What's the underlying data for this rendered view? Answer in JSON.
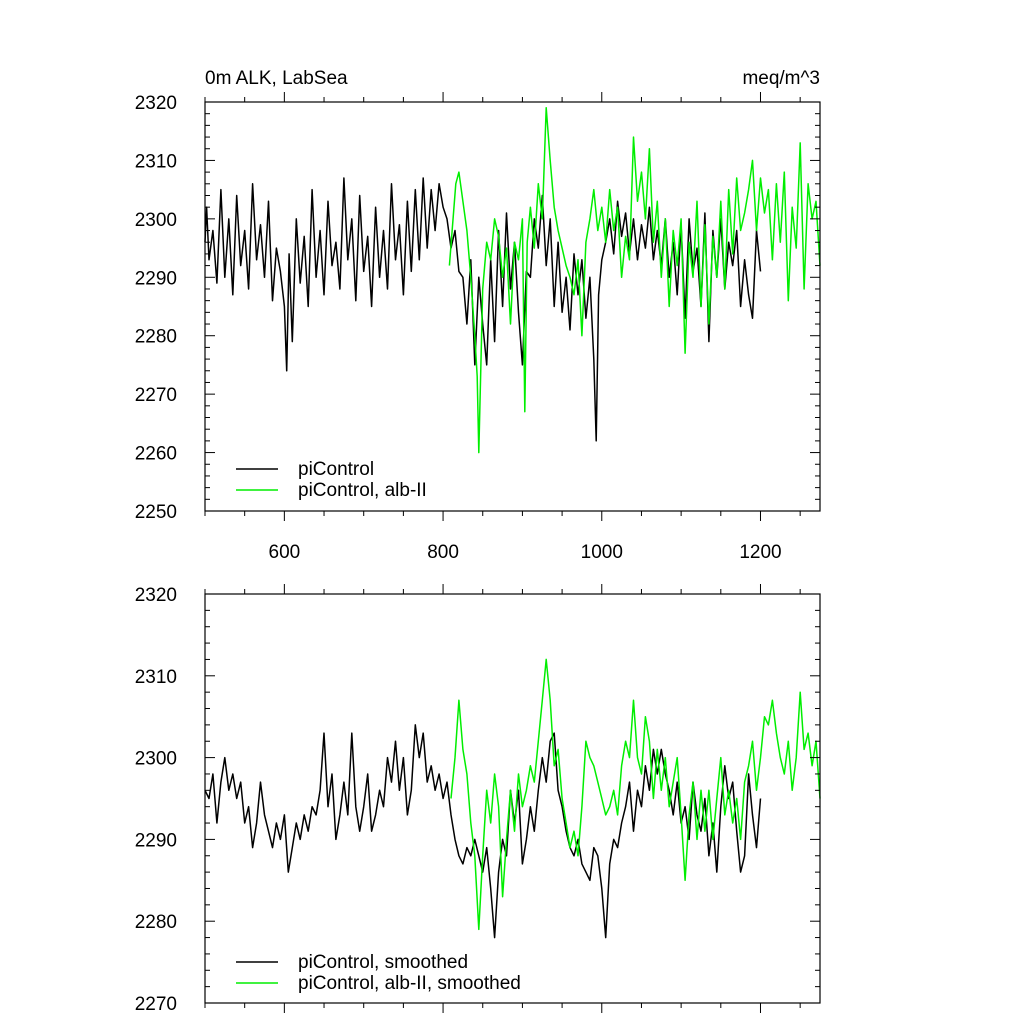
{
  "chart_data": [
    {
      "type": "line",
      "title": "0m ALK, LabSea",
      "units": "meq/m^3",
      "xlim": [
        500,
        1275
      ],
      "ylim": [
        2250,
        2320
      ],
      "xticks": [
        600,
        800,
        1000,
        1200
      ],
      "yticks": [
        2250,
        2260,
        2270,
        2280,
        2290,
        2300,
        2310,
        2320
      ],
      "grid": false,
      "legend_position": "bottom-left",
      "series": [
        {
          "name": "piControl",
          "color": "#000000",
          "x": [
            500,
            502,
            505,
            510,
            515,
            520,
            525,
            530,
            535,
            540,
            545,
            550,
            555,
            560,
            565,
            570,
            575,
            580,
            585,
            590,
            595,
            600,
            603,
            606,
            610,
            615,
            620,
            625,
            630,
            635,
            640,
            645,
            650,
            655,
            660,
            665,
            670,
            675,
            680,
            685,
            690,
            695,
            700,
            705,
            710,
            715,
            720,
            725,
            730,
            735,
            740,
            745,
            750,
            755,
            760,
            765,
            770,
            775,
            780,
            785,
            790,
            795,
            800,
            805,
            810,
            815,
            820,
            825,
            830,
            835,
            840,
            845,
            850,
            855,
            860,
            865,
            870,
            875,
            880,
            885,
            890,
            895,
            900,
            905,
            910,
            915,
            920,
            925,
            930,
            935,
            940,
            945,
            950,
            955,
            960,
            965,
            970,
            975,
            980,
            985,
            990,
            993,
            996,
            1000,
            1005,
            1010,
            1015,
            1020,
            1025,
            1030,
            1035,
            1040,
            1045,
            1050,
            1055,
            1060,
            1065,
            1070,
            1075,
            1080,
            1085,
            1090,
            1095,
            1100,
            1105,
            1110,
            1115,
            1120,
            1125,
            1130,
            1135,
            1140,
            1145,
            1150,
            1155,
            1160,
            1165,
            1170,
            1175,
            1180,
            1185,
            1190,
            1195,
            1200
          ],
          "values": [
            2296,
            2302,
            2293,
            2298,
            2289,
            2305,
            2290,
            2300,
            2287,
            2304,
            2292,
            2298,
            2288,
            2306,
            2293,
            2299,
            2290,
            2303,
            2286,
            2295,
            2291,
            2285,
            2274,
            2294,
            2279,
            2300,
            2289,
            2297,
            2285,
            2305,
            2290,
            2298,
            2287,
            2303,
            2292,
            2296,
            2288,
            2307,
            2293,
            2300,
            2286,
            2304,
            2291,
            2297,
            2285,
            2302,
            2290,
            2298,
            2288,
            2306,
            2293,
            2299,
            2287,
            2303,
            2291,
            2305,
            2293,
            2307,
            2295,
            2305,
            2298,
            2306,
            2302,
            2300,
            2295,
            2298,
            2291,
            2290,
            2282,
            2293,
            2275,
            2290,
            2282,
            2275,
            2293,
            2279,
            2298,
            2285,
            2301,
            2288,
            2296,
            2284,
            2275,
            2291,
            2290,
            2300,
            2295,
            2304,
            2292,
            2300,
            2285,
            2296,
            2284,
            2290,
            2281,
            2294,
            2287,
            2293,
            2283,
            2290,
            2276,
            2262,
            2287,
            2293,
            2296,
            2300,
            2294,
            2303,
            2297,
            2301,
            2294,
            2300,
            2293,
            2299,
            2295,
            2302,
            2293,
            2298,
            2292,
            2300,
            2290,
            2296,
            2287,
            2299,
            2283,
            2300,
            2291,
            2295,
            2285,
            2301,
            2279,
            2298,
            2290,
            2300,
            2288,
            2296,
            2292,
            2298,
            2285,
            2293,
            2287,
            2283,
            2298,
            2291
          ]
        },
        {
          "name": "piControl, alb-II",
          "color": "#00ee00",
          "x": [
            808,
            812,
            816,
            820,
            825,
            830,
            835,
            840,
            843,
            845,
            850,
            855,
            860,
            865,
            870,
            875,
            880,
            885,
            890,
            895,
            900,
            903,
            906,
            910,
            915,
            920,
            925,
            930,
            935,
            940,
            945,
            950,
            955,
            960,
            965,
            970,
            975,
            980,
            985,
            990,
            995,
            1000,
            1005,
            1010,
            1015,
            1020,
            1025,
            1030,
            1035,
            1040,
            1045,
            1050,
            1055,
            1060,
            1065,
            1070,
            1075,
            1080,
            1085,
            1090,
            1095,
            1100,
            1105,
            1110,
            1115,
            1120,
            1125,
            1130,
            1135,
            1140,
            1145,
            1150,
            1155,
            1160,
            1165,
            1170,
            1175,
            1180,
            1185,
            1190,
            1195,
            1200,
            1205,
            1210,
            1215,
            1220,
            1225,
            1230,
            1235,
            1240,
            1245,
            1250,
            1255,
            1260,
            1265,
            1270,
            1275
          ],
          "values": [
            2292,
            2299,
            2306,
            2308,
            2303,
            2298,
            2290,
            2280,
            2273,
            2260,
            2288,
            2296,
            2293,
            2300,
            2297,
            2290,
            2295,
            2282,
            2296,
            2293,
            2300,
            2267,
            2296,
            2302,
            2295,
            2306,
            2300,
            2319,
            2310,
            2302,
            2298,
            2295,
            2292,
            2290,
            2287,
            2293,
            2280,
            2296,
            2300,
            2305,
            2298,
            2302,
            2296,
            2305,
            2298,
            2302,
            2290,
            2297,
            2293,
            2314,
            2303,
            2308,
            2300,
            2312,
            2296,
            2303,
            2290,
            2300,
            2285,
            2298,
            2292,
            2300,
            2277,
            2296,
            2290,
            2303,
            2285,
            2299,
            2282,
            2297,
            2290,
            2303,
            2288,
            2305,
            2294,
            2307,
            2298,
            2301,
            2305,
            2310,
            2298,
            2307,
            2301,
            2305,
            2293,
            2306,
            2296,
            2308,
            2286,
            2302,
            2295,
            2313,
            2288,
            2306,
            2300,
            2303,
            2292
          ]
        }
      ]
    },
    {
      "type": "line",
      "xlim": [
        500,
        1275
      ],
      "ylim": [
        2270,
        2320
      ],
      "xticks": [
        600,
        800,
        1000,
        1200
      ],
      "yticks": [
        2270,
        2280,
        2290,
        2300,
        2310,
        2320
      ],
      "grid": false,
      "legend_position": "bottom-left",
      "series": [
        {
          "name": "piControl, smoothed",
          "color": "#000000",
          "x": [
            500,
            505,
            510,
            515,
            520,
            525,
            530,
            535,
            540,
            545,
            550,
            555,
            560,
            565,
            570,
            575,
            580,
            585,
            590,
            595,
            600,
            605,
            610,
            615,
            620,
            625,
            630,
            635,
            640,
            645,
            650,
            655,
            660,
            665,
            670,
            675,
            680,
            685,
            690,
            695,
            700,
            705,
            710,
            715,
            720,
            725,
            730,
            735,
            740,
            745,
            750,
            755,
            760,
            765,
            770,
            775,
            780,
            785,
            790,
            795,
            800,
            805,
            810,
            815,
            820,
            825,
            830,
            835,
            840,
            845,
            850,
            855,
            860,
            865,
            870,
            875,
            880,
            885,
            890,
            895,
            900,
            905,
            910,
            915,
            920,
            925,
            930,
            935,
            940,
            945,
            950,
            955,
            960,
            965,
            970,
            975,
            980,
            985,
            990,
            995,
            1000,
            1005,
            1010,
            1015,
            1020,
            1025,
            1030,
            1035,
            1040,
            1045,
            1050,
            1055,
            1060,
            1065,
            1070,
            1075,
            1080,
            1085,
            1090,
            1095,
            1100,
            1105,
            1110,
            1115,
            1120,
            1125,
            1130,
            1135,
            1140,
            1145,
            1150,
            1155,
            1160,
            1165,
            1170,
            1175,
            1180,
            1185,
            1190,
            1195,
            1200
          ],
          "values": [
            2296,
            2295,
            2298,
            2292,
            2297,
            2300,
            2296,
            2298,
            2295,
            2297,
            2292,
            2294,
            2289,
            2292,
            2297,
            2293,
            2291,
            2289,
            2292,
            2290,
            2293,
            2286,
            2289,
            2292,
            2290,
            2293,
            2291,
            2294,
            2293,
            2296,
            2303,
            2294,
            2298,
            2290,
            2293,
            2297,
            2293,
            2303,
            2294,
            2291,
            2294,
            2298,
            2291,
            2293,
            2296,
            2294,
            2300,
            2297,
            2302,
            2296,
            2300,
            2293,
            2296,
            2304,
            2300,
            2303,
            2297,
            2299,
            2296,
            2298,
            2295,
            2297,
            2293,
            2290,
            2288,
            2287,
            2289,
            2288,
            2290,
            2288,
            2286,
            2289,
            2284,
            2278,
            2286,
            2290,
            2288,
            2296,
            2292,
            2296,
            2287,
            2290,
            2294,
            2291,
            2296,
            2300,
            2297,
            2302,
            2303,
            2296,
            2294,
            2291,
            2289,
            2288,
            2290,
            2287,
            2286,
            2285,
            2289,
            2288,
            2284,
            2278,
            2287,
            2290,
            2289,
            2292,
            2294,
            2297,
            2291,
            2296,
            2294,
            2299,
            2296,
            2301,
            2298,
            2301,
            2298,
            2296,
            2293,
            2297,
            2292,
            2294,
            2290,
            2297,
            2293,
            2291,
            2295,
            2288,
            2292,
            2286,
            2294,
            2299,
            2295,
            2297,
            2291,
            2286,
            2288,
            2298,
            2293,
            2289,
            2295
          ]
        },
        {
          "name": "piControl, alb-II, smoothed",
          "color": "#00ee00",
          "x": [
            810,
            815,
            820,
            825,
            830,
            835,
            840,
            845,
            850,
            855,
            860,
            865,
            870,
            875,
            880,
            885,
            890,
            895,
            900,
            905,
            910,
            915,
            920,
            925,
            930,
            935,
            940,
            945,
            950,
            955,
            960,
            965,
            970,
            975,
            980,
            985,
            990,
            995,
            1000,
            1005,
            1010,
            1015,
            1020,
            1025,
            1030,
            1035,
            1040,
            1045,
            1050,
            1055,
            1060,
            1065,
            1070,
            1075,
            1080,
            1085,
            1090,
            1095,
            1100,
            1105,
            1110,
            1115,
            1120,
            1125,
            1130,
            1135,
            1140,
            1145,
            1150,
            1155,
            1160,
            1165,
            1170,
            1175,
            1180,
            1185,
            1190,
            1195,
            1200,
            1205,
            1210,
            1215,
            1220,
            1225,
            1230,
            1235,
            1240,
            1245,
            1250,
            1255,
            1260,
            1265,
            1270,
            1275
          ],
          "values": [
            2295,
            2300,
            2307,
            2301,
            2298,
            2292,
            2288,
            2279,
            2288,
            2296,
            2292,
            2298,
            2294,
            2283,
            2290,
            2296,
            2291,
            2298,
            2294,
            2296,
            2299,
            2297,
            2302,
            2307,
            2312,
            2307,
            2299,
            2301,
            2295,
            2292,
            2289,
            2291,
            2288,
            2294,
            2302,
            2300,
            2299,
            2297,
            2295,
            2293,
            2294,
            2296,
            2293,
            2299,
            2302,
            2300,
            2307,
            2300,
            2298,
            2305,
            2302,
            2295,
            2301,
            2296,
            2300,
            2294,
            2297,
            2300,
            2293,
            2285,
            2293,
            2297,
            2290,
            2296,
            2291,
            2296,
            2290,
            2295,
            2300,
            2293,
            2296,
            2292,
            2295,
            2290,
            2297,
            2299,
            2302,
            2296,
            2300,
            2305,
            2304,
            2307,
            2303,
            2300,
            2298,
            2302,
            2296,
            2300,
            2308,
            2301,
            2303,
            2299,
            2302,
            2295
          ]
        }
      ]
    }
  ]
}
